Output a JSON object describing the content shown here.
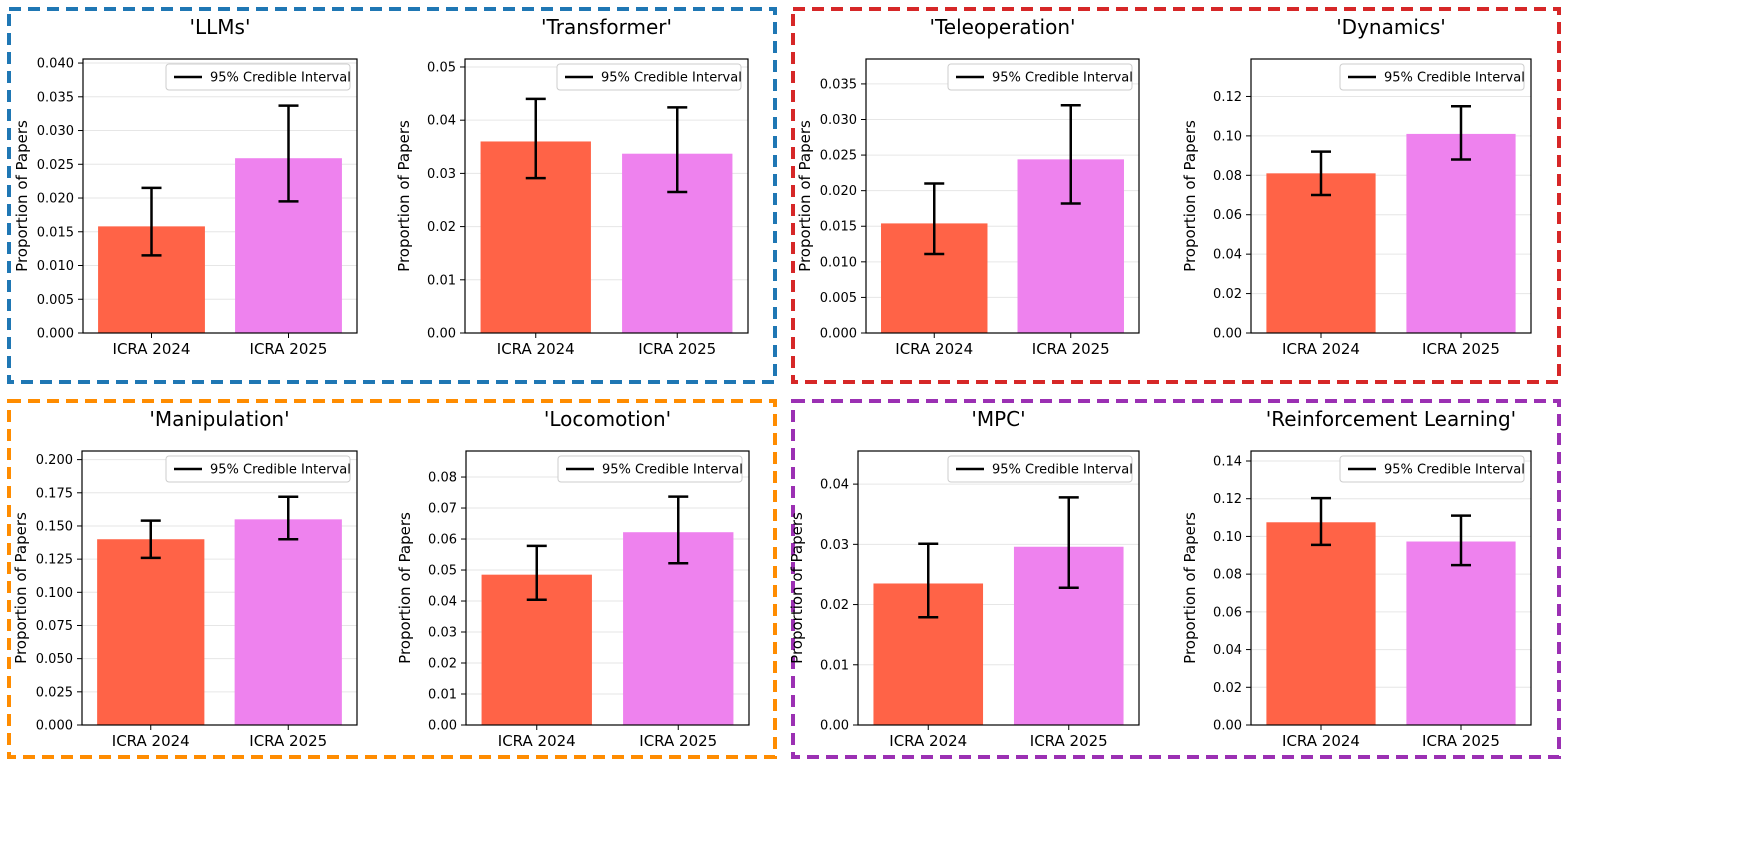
{
  "colors": {
    "bar_2024": "#ff6347",
    "bar_2025": "#ee82ee",
    "error_bar": "#000000",
    "grid": "#e6e6e6",
    "group_blue": "#1f77b4",
    "group_red": "#d62728",
    "group_orange": "#ff8c00",
    "group_purple": "#9b30b3"
  },
  "groups": [
    {
      "border_color_key": "group_blue",
      "charts": [
        0,
        1
      ]
    },
    {
      "border_color_key": "group_red",
      "charts": [
        2,
        3
      ]
    },
    {
      "border_color_key": "group_orange",
      "charts": [
        4,
        5
      ]
    },
    {
      "border_color_key": "group_purple",
      "charts": [
        6,
        7
      ]
    }
  ],
  "chart_data": [
    {
      "type": "bar",
      "title": "'LLMs'",
      "ylabel": "Proportion of Papers",
      "xlabel": "",
      "categories": [
        "ICRA 2024",
        "ICRA 2025"
      ],
      "values": [
        0.0158,
        0.0259
      ],
      "ci_low": [
        0.0115,
        0.0195
      ],
      "ci_high": [
        0.0215,
        0.0337
      ],
      "ylim": [
        0,
        0.0406
      ],
      "yticks": [
        0.0,
        0.005,
        0.01,
        0.015,
        0.02,
        0.025,
        0.03,
        0.035,
        0.04
      ],
      "ytick_labels": [
        "0.000",
        "0.005",
        "0.010",
        "0.015",
        "0.020",
        "0.025",
        "0.030",
        "0.035",
        "0.040"
      ],
      "legend": "95% Credible Interval",
      "legend_loc": "upper-right",
      "grid": "horizontal"
    },
    {
      "type": "bar",
      "title": "'Transformer'",
      "ylabel": "Proportion of Papers",
      "xlabel": "",
      "categories": [
        "ICRA 2024",
        "ICRA 2025"
      ],
      "values": [
        0.036,
        0.0337
      ],
      "ci_low": [
        0.0291,
        0.0265
      ],
      "ci_high": [
        0.044,
        0.0424
      ],
      "ylim": [
        0,
        0.0515
      ],
      "yticks": [
        0.0,
        0.01,
        0.02,
        0.03,
        0.04,
        0.05
      ],
      "ytick_labels": [
        "0.00",
        "0.01",
        "0.02",
        "0.03",
        "0.04",
        "0.05"
      ],
      "legend": "95% Credible Interval",
      "legend_loc": "upper-right",
      "grid": "horizontal"
    },
    {
      "type": "bar",
      "title": "'Teleoperation'",
      "ylabel": "Proportion of Papers",
      "xlabel": "",
      "categories": [
        "ICRA 2024",
        "ICRA 2025"
      ],
      "values": [
        0.0154,
        0.0244
      ],
      "ci_low": [
        0.0111,
        0.0182
      ],
      "ci_high": [
        0.021,
        0.032
      ],
      "ylim": [
        0,
        0.0385
      ],
      "yticks": [
        0.0,
        0.005,
        0.01,
        0.015,
        0.02,
        0.025,
        0.03,
        0.035
      ],
      "ytick_labels": [
        "0.000",
        "0.005",
        "0.010",
        "0.015",
        "0.020",
        "0.025",
        "0.030",
        "0.035"
      ],
      "legend": "95% Credible Interval",
      "legend_loc": "upper-right",
      "grid": "horizontal"
    },
    {
      "type": "bar",
      "title": "'Dynamics'",
      "ylabel": "Proportion of Papers",
      "xlabel": "",
      "categories": [
        "ICRA 2024",
        "ICRA 2025"
      ],
      "values": [
        0.081,
        0.101
      ],
      "ci_low": [
        0.07,
        0.088
      ],
      "ci_high": [
        0.092,
        0.115
      ],
      "ylim": [
        0,
        0.139
      ],
      "yticks": [
        0.0,
        0.02,
        0.04,
        0.06,
        0.08,
        0.1,
        0.12
      ],
      "ytick_labels": [
        "0.00",
        "0.02",
        "0.04",
        "0.06",
        "0.08",
        "0.10",
        "0.12"
      ],
      "legend": "95% Credible Interval",
      "legend_loc": "upper-right",
      "grid": "horizontal"
    },
    {
      "type": "bar",
      "title": "'Manipulation'",
      "ylabel": "Proportion of Papers",
      "xlabel": "",
      "categories": [
        "ICRA 2024",
        "ICRA 2025"
      ],
      "values": [
        0.14,
        0.155
      ],
      "ci_low": [
        0.126,
        0.14
      ],
      "ci_high": [
        0.154,
        0.172
      ],
      "ylim": [
        0,
        0.2065
      ],
      "yticks": [
        0.0,
        0.025,
        0.05,
        0.075,
        0.1,
        0.125,
        0.15,
        0.175,
        0.2
      ],
      "ytick_labels": [
        "0.000",
        "0.025",
        "0.050",
        "0.075",
        "0.100",
        "0.125",
        "0.150",
        "0.175",
        "0.200"
      ],
      "legend": "95% Credible Interval",
      "legend_loc": "upper-right",
      "grid": "horizontal"
    },
    {
      "type": "bar",
      "title": "'Locomotion'",
      "ylabel": "Proportion of Papers",
      "xlabel": "",
      "categories": [
        "ICRA 2024",
        "ICRA 2025"
      ],
      "values": [
        0.0485,
        0.0622
      ],
      "ci_low": [
        0.0404,
        0.0522
      ],
      "ci_high": [
        0.0578,
        0.0737
      ],
      "ylim": [
        0,
        0.0884
      ],
      "yticks": [
        0.0,
        0.01,
        0.02,
        0.03,
        0.04,
        0.05,
        0.06,
        0.07,
        0.08
      ],
      "ytick_labels": [
        "0.00",
        "0.01",
        "0.02",
        "0.03",
        "0.04",
        "0.05",
        "0.06",
        "0.07",
        "0.08"
      ],
      "legend": "95% Credible Interval",
      "legend_loc": "upper-right",
      "grid": "horizontal"
    },
    {
      "type": "bar",
      "title": "'MPC'",
      "ylabel": "Proportion of Papers",
      "xlabel": "",
      "categories": [
        "ICRA 2024",
        "ICRA 2025"
      ],
      "values": [
        0.0235,
        0.0296
      ],
      "ci_low": [
        0.0179,
        0.0228
      ],
      "ci_high": [
        0.0301,
        0.0378
      ],
      "ylim": [
        0,
        0.0455
      ],
      "yticks": [
        0.0,
        0.01,
        0.02,
        0.03,
        0.04
      ],
      "ytick_labels": [
        "0.00",
        "0.01",
        "0.02",
        "0.03",
        "0.04"
      ],
      "legend": "95% Credible Interval",
      "legend_loc": "upper-right",
      "grid": "horizontal"
    },
    {
      "type": "bar",
      "title": "'Reinforcement Learning'",
      "ylabel": "Proportion of Papers",
      "xlabel": "",
      "categories": [
        "ICRA 2024",
        "ICRA 2025"
      ],
      "values": [
        0.1075,
        0.0973
      ],
      "ci_low": [
        0.0955,
        0.0848
      ],
      "ci_high": [
        0.1203,
        0.111
      ],
      "ylim": [
        0,
        0.1453
      ],
      "yticks": [
        0.0,
        0.02,
        0.04,
        0.06,
        0.08,
        0.1,
        0.12,
        0.14
      ],
      "ytick_labels": [
        "0.00",
        "0.02",
        "0.04",
        "0.06",
        "0.08",
        "0.10",
        "0.12",
        "0.14"
      ],
      "legend": "95% Credible Interval",
      "legend_loc": "upper-right",
      "grid": "horizontal"
    }
  ]
}
